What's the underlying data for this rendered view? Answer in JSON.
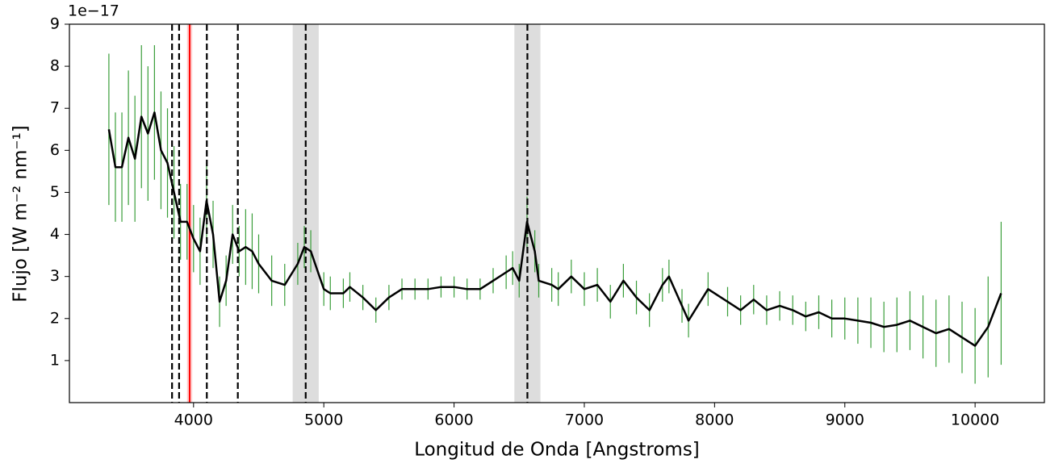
{
  "chart_data": {
    "type": "line",
    "xlabel": "Longitud de Onda [Angstroms]",
    "ylabel": "Flujo [W m⁻² nm⁻¹]",
    "y_offset_label": "1e−17",
    "xlim": [
      3047,
      10532
    ],
    "ylim": [
      0,
      9
    ],
    "xticks": [
      4000,
      5000,
      6000,
      7000,
      8000,
      9000,
      10000
    ],
    "yticks": [
      1,
      2,
      3,
      4,
      5,
      6,
      7,
      8,
      9
    ],
    "x": [
      3350,
      3400,
      3450,
      3500,
      3550,
      3600,
      3650,
      3700,
      3750,
      3800,
      3850,
      3900,
      3950,
      4000,
      4050,
      4100,
      4150,
      4200,
      4250,
      4300,
      4350,
      4400,
      4450,
      4500,
      4600,
      4700,
      4800,
      4850,
      4900,
      5000,
      5050,
      5150,
      5200,
      5300,
      5400,
      5500,
      5600,
      5700,
      5800,
      5900,
      6000,
      6100,
      6200,
      6300,
      6400,
      6450,
      6500,
      6560,
      6620,
      6650,
      6750,
      6800,
      6900,
      7000,
      7100,
      7200,
      7300,
      7400,
      7500,
      7600,
      7650,
      7750,
      7800,
      7950,
      8100,
      8200,
      8300,
      8400,
      8500,
      8600,
      8700,
      8800,
      8900,
      9000,
      9100,
      9200,
      9300,
      9400,
      9500,
      9600,
      9700,
      9800,
      9900,
      10000,
      10100,
      10200
    ],
    "series": [
      {
        "color": "#000000",
        "error_color": "#3a9e3a",
        "values": [
          6.5,
          5.6,
          5.6,
          6.3,
          5.8,
          6.8,
          6.4,
          6.9,
          6.0,
          5.7,
          5.0,
          4.3,
          4.3,
          3.9,
          3.6,
          4.8,
          4.0,
          2.4,
          2.9,
          4.0,
          3.6,
          3.7,
          3.6,
          3.3,
          2.9,
          2.8,
          3.3,
          3.7,
          3.6,
          2.7,
          2.6,
          2.6,
          2.75,
          2.5,
          2.2,
          2.5,
          2.7,
          2.7,
          2.7,
          2.75,
          2.75,
          2.7,
          2.7,
          2.9,
          3.1,
          3.2,
          2.9,
          4.3,
          3.6,
          2.9,
          2.8,
          2.7,
          3.0,
          2.7,
          2.8,
          2.4,
          2.9,
          2.5,
          2.2,
          2.8,
          3.0,
          2.3,
          1.95,
          2.7,
          2.4,
          2.2,
          2.45,
          2.2,
          2.3,
          2.2,
          2.05,
          2.15,
          2.0,
          2.0,
          1.95,
          1.9,
          1.8,
          1.85,
          1.95,
          1.8,
          1.65,
          1.75,
          1.55,
          1.35,
          1.8,
          2.6
        ],
        "errors": [
          1.8,
          1.3,
          1.3,
          1.6,
          1.5,
          1.7,
          1.6,
          1.6,
          1.4,
          1.3,
          1.1,
          0.9,
          0.9,
          0.8,
          0.8,
          0.9,
          0.8,
          0.6,
          0.6,
          0.7,
          0.6,
          0.9,
          0.9,
          0.7,
          0.6,
          0.5,
          0.5,
          0.5,
          0.5,
          0.4,
          0.4,
          0.35,
          0.35,
          0.3,
          0.3,
          0.3,
          0.25,
          0.25,
          0.25,
          0.25,
          0.25,
          0.25,
          0.25,
          0.3,
          0.4,
          0.4,
          0.4,
          0.6,
          0.5,
          0.4,
          0.4,
          0.4,
          0.4,
          0.4,
          0.4,
          0.4,
          0.4,
          0.4,
          0.4,
          0.4,
          0.4,
          0.4,
          0.4,
          0.4,
          0.35,
          0.35,
          0.35,
          0.35,
          0.35,
          0.35,
          0.35,
          0.4,
          0.45,
          0.5,
          0.55,
          0.6,
          0.6,
          0.65,
          0.7,
          0.75,
          0.8,
          0.8,
          0.85,
          0.9,
          1.2,
          1.7
        ]
      }
    ],
    "vlines": [
      3835,
      3889,
      4102,
      4340,
      4861,
      6563
    ],
    "vline_color": "#000000",
    "red_line": 3970,
    "red_color": "#ff0000",
    "red_span": [
      3950,
      3990
    ],
    "gray_spans": [
      [
        4761,
        4961
      ],
      [
        6463,
        6663
      ]
    ],
    "span_color": "#dddddd"
  }
}
